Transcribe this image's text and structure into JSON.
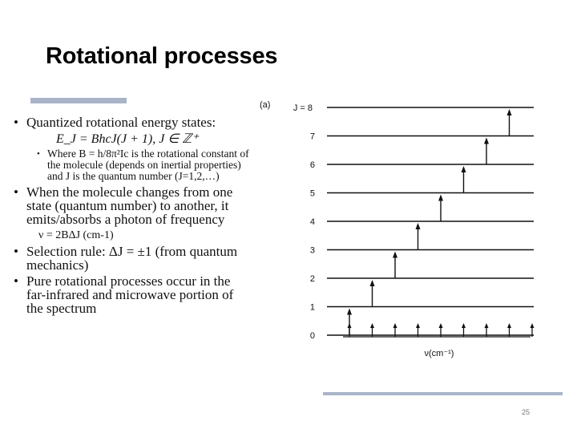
{
  "slide": {
    "title": "Rotational processes",
    "page_number": "25"
  },
  "bullets": {
    "b1_text": "Quantized rotational energy states:",
    "b1_formula": "E_J = BhcJ(J + 1), J ∈ ℤ⁺",
    "b1_sub": "Where B = h/8π²Ic is the rotational constant of the molecule (depends on inertial properties) and J is the quantum number (J=1,2,…)",
    "b2_text": "When the molecule changes from one state (quantum number) to another, it emits/absorbs a photon of frequency",
    "b2_formula": "ν = 2BΔJ (cm-1)",
    "b3_text": "Selection rule: ΔJ = ±1 (from quantum mechanics)",
    "b4_text": "Pure rotational processes occur in the far-infrared and microwave portion of the spectrum"
  },
  "diagram": {
    "panel_label": "(a)",
    "j_prefix": "J = ",
    "levels": [
      "0",
      "1",
      "2",
      "3",
      "4",
      "5",
      "6",
      "7",
      "8"
    ],
    "xlabel": "ν(cm⁻¹)",
    "spectral_line_count": 9
  }
}
